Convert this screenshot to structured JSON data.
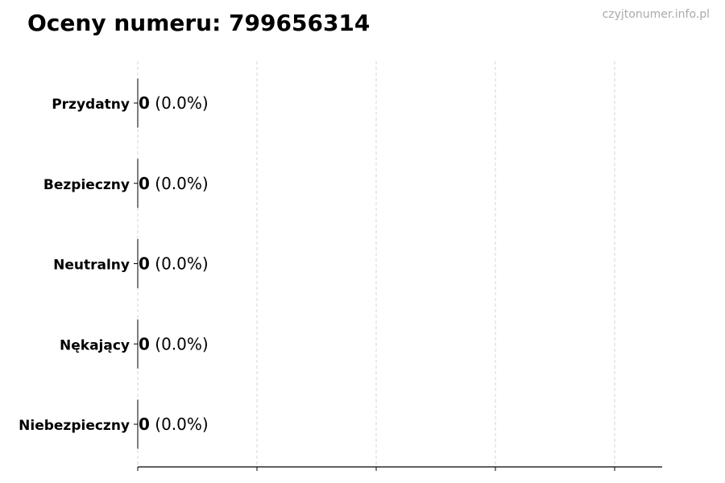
{
  "title": "Oceny numeru: 799656314",
  "watermark": "czyjtonumer.info.pl",
  "chart_data": {
    "type": "bar",
    "orientation": "horizontal",
    "title": "Oceny numeru: 799656314",
    "xlabel": "",
    "ylabel": "",
    "categories": [
      "Przydatny",
      "Bezpieczny",
      "Neutralny",
      "Nękający",
      "Niebezpieczny"
    ],
    "values": [
      0,
      0,
      0,
      0,
      0
    ],
    "data_labels": [
      {
        "count": "0",
        "percent": "(0.0%)"
      },
      {
        "count": "0",
        "percent": "(0.0%)"
      },
      {
        "count": "0",
        "percent": "(0.0%)"
      },
      {
        "count": "0",
        "percent": "(0.0%)"
      },
      {
        "count": "0",
        "percent": "(0.0%)"
      }
    ],
    "x_ticks": 5,
    "x_tick_labels_shown": false,
    "grid": "vertical dashed",
    "colors": {
      "bar_edge": "#000000",
      "grid": "#cccccc",
      "watermark": "#aaaaaa"
    }
  }
}
